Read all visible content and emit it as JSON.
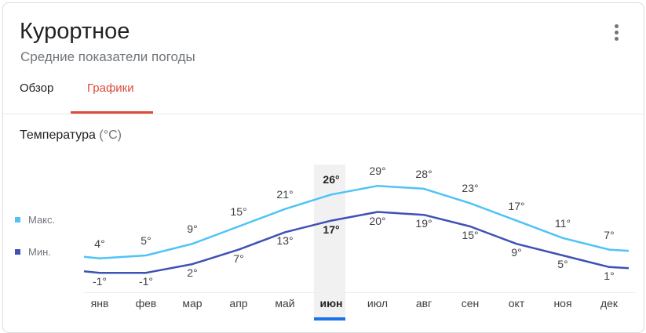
{
  "header": {
    "title": "Курортное",
    "subtitle": "Средние показатели погоды",
    "menu_icon": "more-vert-icon"
  },
  "tabs": [
    {
      "label": "Обзор",
      "active": false
    },
    {
      "label": "Графики",
      "active": true
    }
  ],
  "colors": {
    "accent": "#dd4b39",
    "max_line": "#4fc3f7",
    "min_line": "#3f51b5",
    "selected_bar": "#1a73e8"
  },
  "chart": {
    "title": "Температура",
    "unit": "(°C)",
    "legend": [
      {
        "label": "Макс.",
        "color": "#4fc3f7"
      },
      {
        "label": "Мин.",
        "color": "#3f51b5"
      }
    ],
    "selected_month": "июн"
  },
  "chart_data": {
    "type": "line",
    "title": "Температура (°C)",
    "xlabel": "",
    "ylabel": "°C",
    "categories": [
      "янв",
      "фев",
      "мар",
      "апр",
      "май",
      "июн",
      "июл",
      "авг",
      "сен",
      "окт",
      "ноя",
      "дек"
    ],
    "series": [
      {
        "name": "Макс.",
        "color": "#4fc3f7",
        "values": [
          4,
          5,
          9,
          15,
          21,
          26,
          29,
          28,
          23,
          17,
          11,
          7
        ]
      },
      {
        "name": "Мин.",
        "color": "#3f51b5",
        "values": [
          -1,
          -1,
          2,
          7,
          13,
          17,
          20,
          19,
          15,
          9,
          5,
          1
        ]
      }
    ],
    "labels_max": [
      "4°",
      "5°",
      "9°",
      "15°",
      "21°",
      "26°",
      "29°",
      "28°",
      "23°",
      "17°",
      "11°",
      "7°"
    ],
    "labels_min": [
      "-1°",
      "-1°",
      "2°",
      "7°",
      "13°",
      "17°",
      "20°",
      "19°",
      "15°",
      "9°",
      "5°",
      "1°"
    ],
    "highlighted_category": "июн",
    "grid": false,
    "legend_position": "left"
  }
}
